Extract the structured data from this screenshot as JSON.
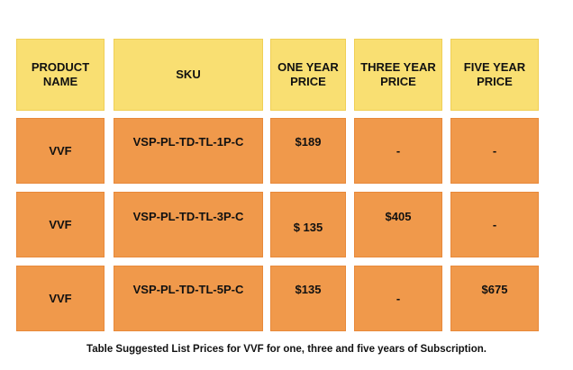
{
  "table": {
    "headers": [
      [
        "PRODUCT",
        "NAME"
      ],
      [
        "SKU"
      ],
      [
        "ONE YEAR",
        "PRICE"
      ],
      [
        "THREE YEAR",
        "PRICE"
      ],
      [
        "FIVE YEAR",
        "PRICE"
      ]
    ],
    "rows": [
      [
        "VVF",
        "VSP-PL-TD-TL-1P-C",
        "$189",
        "-",
        "-"
      ],
      [
        "VVF",
        "VSP-PL-TD-TL-3P-C",
        "$ 135",
        "$405",
        "-"
      ],
      [
        "VVF",
        "VSP-PL-TD-TL-5P-C",
        "$135",
        "-",
        "$675"
      ]
    ]
  },
  "caption": "Table Suggested List Prices for VVF for one, three and five years of Subscription.",
  "colors": {
    "header_fill": "#f9df72",
    "body_fill": "#f0994b",
    "text": "#111111"
  }
}
